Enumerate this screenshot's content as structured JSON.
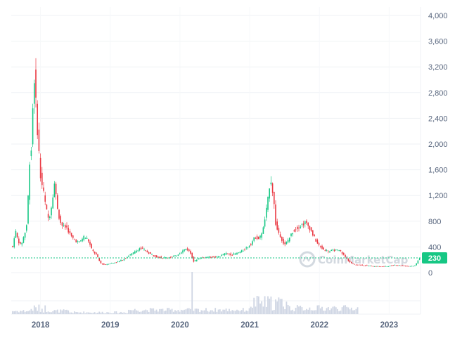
{
  "chart_data": {
    "type": "candlestick",
    "y_ticks": [
      0,
      400,
      800,
      1200,
      1600,
      2000,
      2400,
      2800,
      3200,
      3600,
      4000
    ],
    "y_tick_labels": [
      "0",
      "400",
      "800",
      "1,200",
      "1,600",
      "2,000",
      "2,400",
      "2,800",
      "3,200",
      "3,600",
      "4,000"
    ],
    "ylim": [
      0,
      4000
    ],
    "x_tick_labels": [
      "2018",
      "2019",
      "2020",
      "2021",
      "2022",
      "2023"
    ],
    "x_tick_years": [
      2018,
      2019,
      2020,
      2021,
      2022,
      2023
    ],
    "xlim": [
      2017.58,
      2023.45
    ],
    "current_price": 230,
    "current_price_label": "230",
    "watermark": "CoinMarketCap",
    "grid": true,
    "price_series": [
      [
        2017.58,
        450
      ],
      [
        2017.62,
        380
      ],
      [
        2017.66,
        660
      ],
      [
        2017.7,
        500
      ],
      [
        2017.74,
        420
      ],
      [
        2017.78,
        560
      ],
      [
        2017.82,
        700
      ],
      [
        2017.85,
        1300
      ],
      [
        2017.88,
        2100
      ],
      [
        2017.9,
        1700
      ],
      [
        2017.92,
        3300
      ],
      [
        2017.95,
        2700
      ],
      [
        2017.98,
        2200
      ],
      [
        2018.02,
        1500
      ],
      [
        2018.06,
        1280
      ],
      [
        2018.1,
        1000
      ],
      [
        2018.14,
        820
      ],
      [
        2018.18,
        1050
      ],
      [
        2018.22,
        1400
      ],
      [
        2018.26,
        1050
      ],
      [
        2018.3,
        800
      ],
      [
        2018.34,
        720
      ],
      [
        2018.4,
        700
      ],
      [
        2018.46,
        560
      ],
      [
        2018.52,
        500
      ],
      [
        2018.58,
        470
      ],
      [
        2018.64,
        560
      ],
      [
        2018.7,
        520
      ],
      [
        2018.76,
        350
      ],
      [
        2018.82,
        280
      ],
      [
        2018.88,
        150
      ],
      [
        2018.94,
        120
      ],
      [
        2019.0,
        140
      ],
      [
        2019.1,
        160
      ],
      [
        2019.2,
        200
      ],
      [
        2019.28,
        260
      ],
      [
        2019.36,
        310
      ],
      [
        2019.44,
        380
      ],
      [
        2019.5,
        360
      ],
      [
        2019.58,
        300
      ],
      [
        2019.68,
        250
      ],
      [
        2019.78,
        230
      ],
      [
        2019.88,
        240
      ],
      [
        2019.96,
        260
      ],
      [
        2020.06,
        340
      ],
      [
        2020.12,
        380
      ],
      [
        2020.18,
        290
      ],
      [
        2020.22,
        170
      ],
      [
        2020.28,
        220
      ],
      [
        2020.36,
        240
      ],
      [
        2020.44,
        245
      ],
      [
        2020.52,
        240
      ],
      [
        2020.6,
        260
      ],
      [
        2020.68,
        300
      ],
      [
        2020.76,
        280
      ],
      [
        2020.84,
        300
      ],
      [
        2020.92,
        340
      ],
      [
        2020.98,
        390
      ],
      [
        2021.04,
        450
      ],
      [
        2021.1,
        560
      ],
      [
        2021.16,
        520
      ],
      [
        2021.22,
        700
      ],
      [
        2021.28,
        1100
      ],
      [
        2021.32,
        1500
      ],
      [
        2021.36,
        1200
      ],
      [
        2021.4,
        700
      ],
      [
        2021.46,
        580
      ],
      [
        2021.52,
        420
      ],
      [
        2021.58,
        520
      ],
      [
        2021.64,
        640
      ],
      [
        2021.7,
        700
      ],
      [
        2021.76,
        740
      ],
      [
        2021.82,
        780
      ],
      [
        2021.88,
        700
      ],
      [
        2021.94,
        560
      ],
      [
        2022.0,
        440
      ],
      [
        2022.08,
        360
      ],
      [
        2022.16,
        330
      ],
      [
        2022.24,
        350
      ],
      [
        2022.32,
        340
      ],
      [
        2022.38,
        260
      ],
      [
        2022.44,
        180
      ],
      [
        2022.5,
        130
      ],
      [
        2022.6,
        120
      ],
      [
        2022.7,
        110
      ],
      [
        2022.8,
        100
      ],
      [
        2022.9,
        95
      ],
      [
        2023.0,
        100
      ],
      [
        2023.1,
        120
      ],
      [
        2023.2,
        110
      ],
      [
        2023.3,
        100
      ],
      [
        2023.4,
        110
      ],
      [
        2023.45,
        230
      ]
    ]
  }
}
